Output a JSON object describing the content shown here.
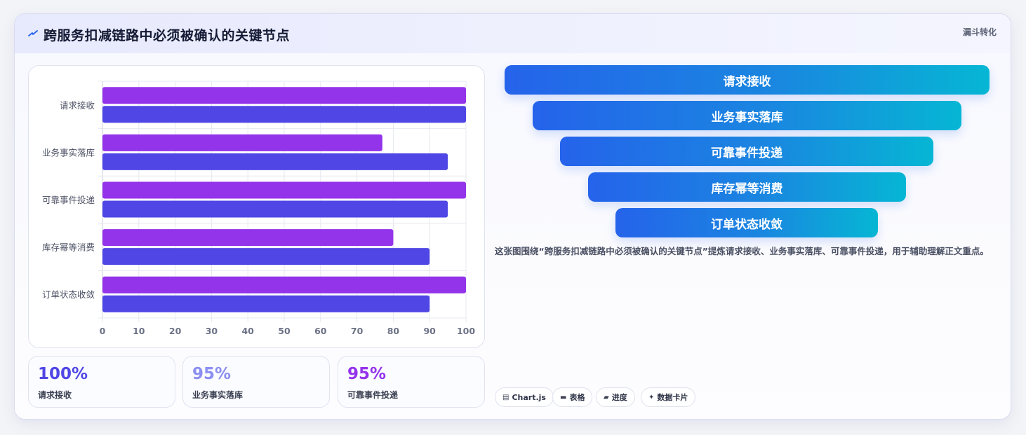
{
  "header": {
    "title": "跨服务扣减链路中必须被确认的关键节点",
    "badge": "漏斗转化",
    "icon": "bolt-icon"
  },
  "chart_data": {
    "type": "bar",
    "orientation": "horizontal",
    "categories": [
      "请求接收",
      "业务事实落库",
      "可靠事件投递",
      "库存幂等消费",
      "订单状态收敛"
    ],
    "series": [
      {
        "values": [
          100,
          77,
          100,
          80,
          100
        ],
        "color": "#9333ea"
      },
      {
        "values": [
          100,
          95,
          95,
          90,
          90
        ],
        "color": "#4f46e5"
      }
    ],
    "xlim": [
      0,
      100
    ],
    "xticks": [
      0,
      10,
      20,
      30,
      40,
      50,
      60,
      70,
      80,
      90,
      100
    ],
    "grid": true,
    "legend": "none"
  },
  "stats": [
    {
      "value": "100%",
      "label": "请求接收",
      "color": "#4f46e5"
    },
    {
      "value": "95%",
      "label": "业务事实落库",
      "color": "#8b8ff0"
    },
    {
      "value": "95%",
      "label": "可靠事件投递",
      "color": "#9333ea"
    }
  ],
  "funnel": {
    "steps": [
      "请求接收",
      "业务事实落库",
      "可靠事件投递",
      "库存幂等消费",
      "订单状态收敛"
    ]
  },
  "description": "这张图围绕“跨服务扣减链路中必须被确认的关键节点”提炼请求接收、业务事实落库、可靠事件投递，用于辅助理解正文重点。",
  "tags": [
    {
      "label": "Chart.js",
      "icon": "chart-icon"
    },
    {
      "label": "表格",
      "icon": "table-icon"
    },
    {
      "label": "进度",
      "icon": "progress-icon"
    },
    {
      "label": "数据卡片",
      "icon": "sparkle-icon"
    }
  ]
}
